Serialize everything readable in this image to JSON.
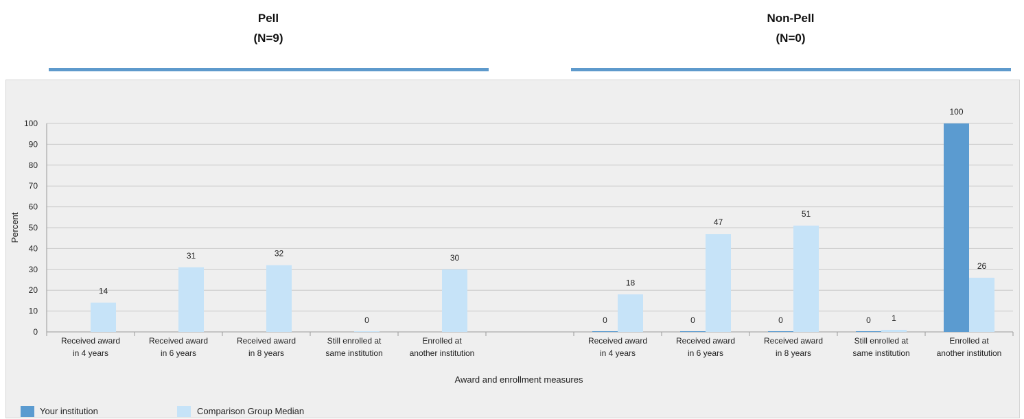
{
  "groups": [
    {
      "title": "Pell",
      "n_label": "(N=9)"
    },
    {
      "title": "Non-Pell",
      "n_label": "(N=0)"
    }
  ],
  "legend": [
    {
      "label": "Your institution",
      "color": "#5b9bd0"
    },
    {
      "label": "Comparison Group Median",
      "color": "#c6e3f8"
    }
  ],
  "chart_data": {
    "type": "bar",
    "ylabel": "Percent",
    "xlabel": "Award and enrollment measures",
    "ylim": [
      0,
      100
    ],
    "yticks": [
      0,
      10,
      20,
      30,
      40,
      50,
      60,
      70,
      80,
      90,
      100
    ],
    "grid": true,
    "legend_position": "bottom",
    "categories": [
      [
        "Received award",
        "in 4 years"
      ],
      [
        "Received award",
        "in 6 years"
      ],
      [
        "Received award",
        "in 8 years"
      ],
      [
        "Still enrolled at",
        "same institution"
      ],
      [
        "Enrolled at",
        "another institution"
      ],
      [
        "",
        ""
      ],
      [
        "Received award",
        "in 4 years"
      ],
      [
        "Received award",
        "in 6 years"
      ],
      [
        "Received award",
        "in 8 years"
      ],
      [
        "Still enrolled at",
        "same institution"
      ],
      [
        "Enrolled at",
        "another institution"
      ]
    ],
    "series": [
      {
        "name": "Your institution",
        "color": "#5b9bd0",
        "values": [
          null,
          null,
          null,
          null,
          null,
          null,
          0,
          0,
          0,
          0,
          100
        ]
      },
      {
        "name": "Comparison Group Median",
        "color": "#c6e3f8",
        "values": [
          14,
          31,
          32,
          0,
          30,
          null,
          18,
          47,
          51,
          1,
          26
        ]
      }
    ]
  }
}
